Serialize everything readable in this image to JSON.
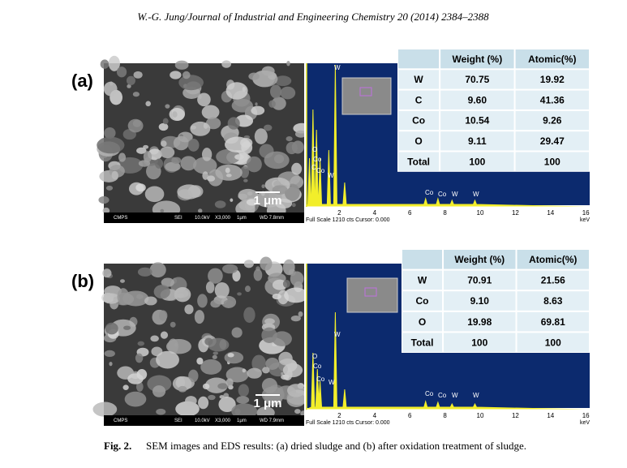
{
  "header": "W.-G. Jung/Journal of Industrial and Engineering Chemistry 20 (2014) 2384–2388",
  "panels": [
    {
      "label": "(a)",
      "sem": {
        "scale": "1 μm",
        "footer": [
          "CMPS",
          "SEI",
          "10.0kV",
          "X3,000",
          "1μm",
          "WD 7.8mm"
        ]
      },
      "eds": {
        "ticks": [
          "2",
          "4",
          "6",
          "8",
          "10",
          "12",
          "14",
          "16"
        ],
        "unit": "keV",
        "footer": "Full Scale 1210 cts Cursor: 0.000",
        "peaks": [
          "W",
          "O",
          "Co",
          "C",
          "Co",
          "W",
          "Co",
          "Co",
          "W",
          "W"
        ]
      },
      "table": {
        "columns": [
          "Weight (%)",
          "Atomic(%)"
        ],
        "rows": [
          [
            "W",
            "70.75",
            "19.92"
          ],
          [
            "C",
            "9.60",
            "41.36"
          ],
          [
            "Co",
            "10.54",
            "9.26"
          ],
          [
            "O",
            "9.11",
            "29.47"
          ],
          [
            "Total",
            "100",
            "100"
          ]
        ]
      }
    },
    {
      "label": "(b)",
      "sem": {
        "scale": "1 μm",
        "footer": [
          "CMPS",
          "SEI",
          "10.0kV",
          "X3,000",
          "1μm",
          "WD 7.9mm"
        ]
      },
      "eds": {
        "ticks": [
          "2",
          "4",
          "6",
          "8",
          "10",
          "12",
          "14",
          "16"
        ],
        "unit": "keV",
        "footer": "Full Scale 1210 cts Cursor: 0.000",
        "peaks": [
          "W",
          "O",
          "Co",
          "Co",
          "W",
          "Co",
          "Co",
          "W",
          "W"
        ]
      },
      "table": {
        "columns": [
          "Weight (%)",
          "Atomic(%)"
        ],
        "rows": [
          [
            "W",
            "70.91",
            "21.56"
          ],
          [
            "Co",
            "9.10",
            "8.63"
          ],
          [
            "O",
            "19.98",
            "69.81"
          ],
          [
            "Total",
            "100",
            "100"
          ]
        ]
      }
    }
  ],
  "caption": {
    "label": "Fig. 2.",
    "text": "SEM images and EDS results: (a) dried sludge and (b) after oxidation treatment of sludge."
  }
}
